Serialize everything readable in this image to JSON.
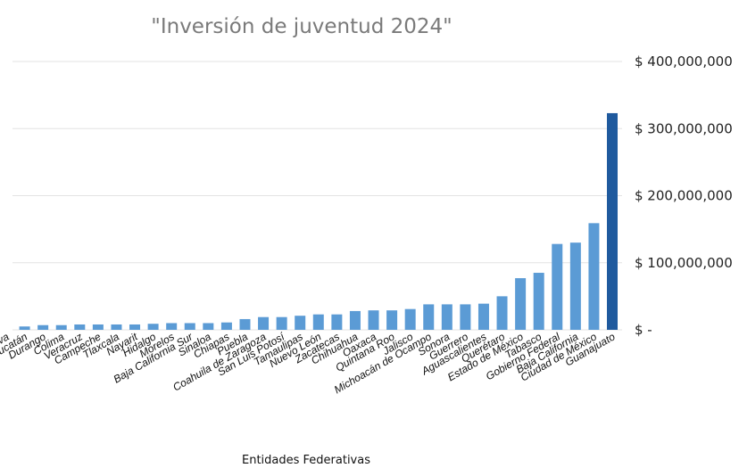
{
  "chart_data": {
    "type": "bar",
    "title": "\"Inversión de juventud 2024\"",
    "xlabel": "Entidades Federativas",
    "ylabel": "",
    "ylim": [
      0,
      400000000
    ],
    "y_ticks": [
      0,
      100000000,
      200000000,
      300000000,
      400000000
    ],
    "y_tick_labels": [
      "$ -",
      "$ 100,000,000",
      "$ 200,000,000",
      "$ 300,000,000",
      "$ 400,000,000"
    ],
    "y_axis_side": "right",
    "grid": true,
    "categories": [
      "ativa",
      "Yucatán",
      "Durango",
      "Colima",
      "Veracruz",
      "Campeche",
      "Tlaxcala",
      "Nayarit",
      "Hidalgo",
      "Morelos",
      "Baja California Sur",
      "Sinaloa",
      "Chiapas",
      "Puebla",
      "Coahuila de Zaragoza",
      "San Luis Potosí",
      "Tamaulipas",
      "Nuevo León",
      "Zacatecas",
      "Chihuahua",
      "Oaxaca",
      "Quintana Roo",
      "Jalisco",
      "Michoacán de Ocampo",
      "Sonora",
      "Guerrero",
      "Aguascalientes",
      "Querétaro",
      "Estado de México",
      "Tabasco",
      "Gobierno Federal",
      "Baja California",
      "Ciudad de México",
      "Guanajuato"
    ],
    "values": [
      0,
      5000000,
      7000000,
      7000000,
      8000000,
      8000000,
      8000000,
      8000000,
      9000000,
      10000000,
      10000000,
      10000000,
      11000000,
      16000000,
      19000000,
      19000000,
      21000000,
      23000000,
      23000000,
      28000000,
      29000000,
      29000000,
      31000000,
      38000000,
      38000000,
      38000000,
      39000000,
      50000000,
      77000000,
      85000000,
      128000000,
      130000000,
      159000000,
      323000000
    ],
    "colors": {
      "bar": "#5b9bd5",
      "highlight_bar": "#1f5a9e",
      "highlight_category": "Guanajuato"
    }
  }
}
